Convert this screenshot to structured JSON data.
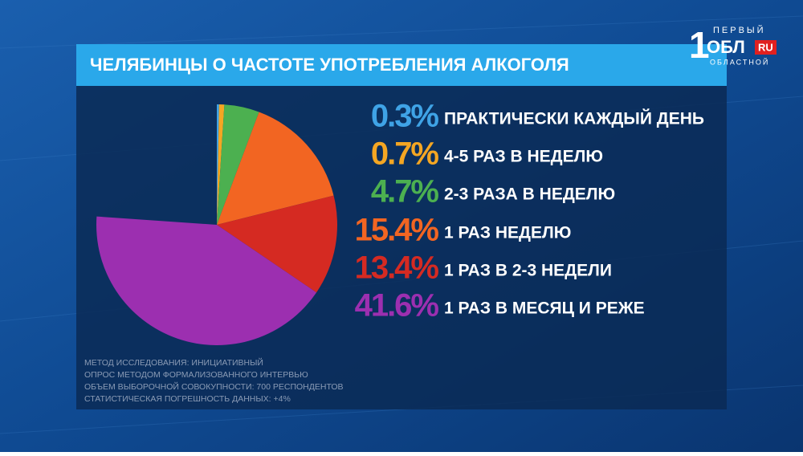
{
  "chart_data": {
    "type": "pie",
    "title": "ЧЕЛЯБИНЦЫ О ЧАСТОТЕ УПОТРЕБЛЕНИЯ АЛКОГОЛЯ",
    "categories": [
      "ПРАКТИЧЕСКИ КАЖДЫЙ ДЕНЬ",
      "4-5 РАЗ В НЕДЕЛЮ",
      "2-3 РАЗА В НЕДЕЛЮ",
      "1 РАЗ НЕДЕЛЮ",
      "1 РАЗ В 2-3 НЕДЕЛИ",
      "1 РАЗ В МЕСЯЦ И РЕЖЕ"
    ],
    "values": [
      0.3,
      0.7,
      4.7,
      15.4,
      13.4,
      41.6
    ],
    "value_labels": [
      "0.3%",
      "0.7%",
      "4.7%",
      "15.4%",
      "13.4%",
      "41.6%"
    ],
    "colors": [
      "#3fa3e6",
      "#f4a623",
      "#4cb050",
      "#f26522",
      "#d52a22",
      "#9c2fb0"
    ],
    "notes": [
      "МЕТОД ИССЛЕДОВАНИЯ: ИНИЦИАТИВНЫЙ",
      "ОПРОС МЕТОДОМ ФОРМАЛИЗОВАННОГО ИНТЕРВЬЮ",
      "ОБЪЕМ ВЫБОРОЧНОЙ СОВОКУПНОСТИ: 700 РЕСПОНДЕНТОВ",
      "СТАТИСТИЧЕСКАЯ ПОГРЕШНОСТЬ ДАННЫХ: +4%"
    ]
  },
  "logo": {
    "digit": "1",
    "top": "ПЕРВЫЙ",
    "main": "ОБЛ",
    "domain": "RU",
    "bottom": "ОБЛАСТНОЙ"
  }
}
